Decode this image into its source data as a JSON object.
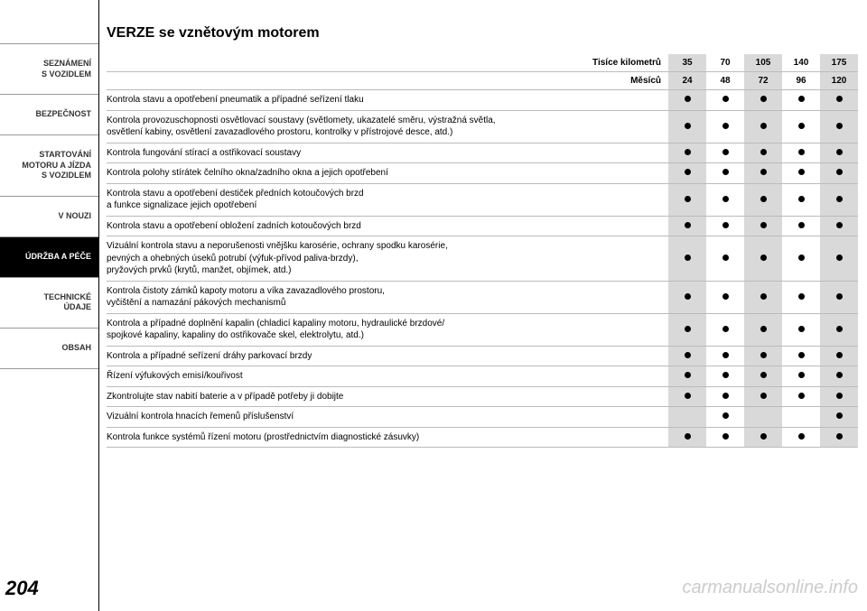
{
  "sidebar": {
    "items": [
      {
        "label": "SEZNÁMENÍ\nS VOZIDLEM",
        "active": false
      },
      {
        "label": "BEZPEČNOST",
        "active": false
      },
      {
        "label": "STARTOVÁNÍ\nMOTORU A JÍZDA\nS VOZIDLEM",
        "active": false
      },
      {
        "label": "V NOUZI",
        "active": false
      },
      {
        "label": "ÚDRŽBA A PÉČE",
        "active": true
      },
      {
        "label": "TECHNICKÉ\nÚDAJE",
        "active": false
      },
      {
        "label": "OBSAH",
        "active": false
      }
    ]
  },
  "title": "VERZE se vznětovým motorem",
  "table": {
    "header1_label": "Tisíce kilometrů",
    "header1_values": [
      "35",
      "70",
      "105",
      "140",
      "175"
    ],
    "header2_label": "Měsíců",
    "header2_values": [
      "24",
      "48",
      "72",
      "96",
      "120"
    ],
    "shade_pattern": [
      "shade",
      "",
      "shade",
      "",
      "shade"
    ],
    "rows": [
      {
        "label": "Kontrola stavu a opotřebení pneumatik a případné seřízení tlaku",
        "dots": [
          1,
          1,
          1,
          1,
          1
        ]
      },
      {
        "label": "Kontrola provozuschopnosti osvětlovací soustavy (světlomety, ukazatelé směru, výstražná světla,\nosvětlení kabiny, osvětlení zavazadlového prostoru, kontrolky v přístrojové desce, atd.)",
        "dots": [
          1,
          1,
          1,
          1,
          1
        ]
      },
      {
        "label": "Kontrola fungování stírací a ostřikovací soustavy",
        "dots": [
          1,
          1,
          1,
          1,
          1
        ]
      },
      {
        "label": "Kontrola polohy stírátek čelního okna/zadního okna a jejich opotřebení",
        "dots": [
          1,
          1,
          1,
          1,
          1
        ]
      },
      {
        "label": "Kontrola stavu a opotřebení destiček předních kotoučových brzd\na funkce signalizace jejich opotřebení",
        "dots": [
          1,
          1,
          1,
          1,
          1
        ]
      },
      {
        "label": "Kontrola stavu a opotřebení obložení zadních kotoučových brzd",
        "dots": [
          1,
          1,
          1,
          1,
          1
        ]
      },
      {
        "label": "Vizuální kontrola stavu a neporušenosti vnějšku karosérie, ochrany spodku karosérie,\npevných a ohebných úseků potrubí (výfuk-přívod paliva-brzdy),\npryžových prvků (krytů, manžet, objímek, atd.)",
        "dots": [
          1,
          1,
          1,
          1,
          1
        ]
      },
      {
        "label": "Kontrola čistoty zámků kapoty motoru a víka zavazadlového prostoru,\nvyčištění a namazání pákových mechanismů",
        "dots": [
          1,
          1,
          1,
          1,
          1
        ]
      },
      {
        "label": "Kontrola a případné doplnění kapalin (chladicí kapaliny motoru, hydraulické brzdové/\nspojkové kapaliny, kapaliny do ostřikovače skel, elektrolytu, atd.)",
        "dots": [
          1,
          1,
          1,
          1,
          1
        ]
      },
      {
        "label": "Kontrola a případné seřízení dráhy parkovací brzdy",
        "dots": [
          1,
          1,
          1,
          1,
          1
        ]
      },
      {
        "label": "Řízení výfukových emisí/kouřivost",
        "dots": [
          1,
          1,
          1,
          1,
          1
        ]
      },
      {
        "label": "Zkontrolujte stav nabití baterie a v případě potřeby ji dobijte",
        "dots": [
          1,
          1,
          1,
          1,
          1
        ]
      },
      {
        "label": "Vizuální kontrola hnacích řemenů příslušenství",
        "dots": [
          0,
          1,
          0,
          0,
          1
        ]
      },
      {
        "label": "Kontrola funkce systémů řízení motoru (prostřednictvím diagnostické zásuvky)",
        "dots": [
          1,
          1,
          1,
          1,
          1
        ]
      }
    ]
  },
  "page_number": "204",
  "watermark": "carmanualsonline.info",
  "style": {
    "dot_color": "#000000",
    "shade_color": "#d9d9d9",
    "border_color": "#bbbbbb",
    "font_size_body": 10,
    "font_size_title": 16
  }
}
